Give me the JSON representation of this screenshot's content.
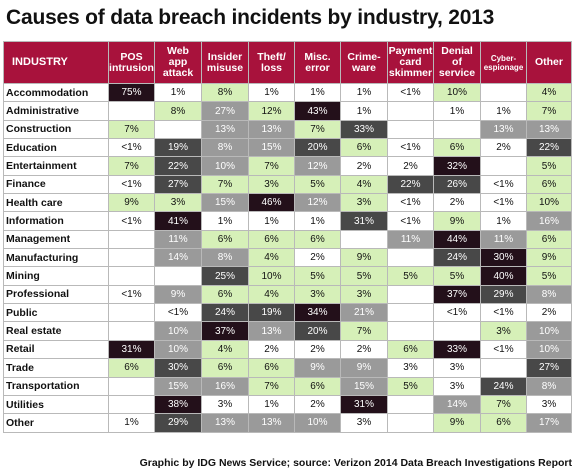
{
  "title": "Causes of data breach incidents by industry, 2013",
  "source": "Graphic by IDG News Service; source: Verizon 2014 Data Breach Investigations Report",
  "colors": {
    "header": "#a8123c",
    "level_0": "#ffffff",
    "level_1": "#d6f0b8",
    "level_2": "#9a9a9a",
    "level_3": "#484848",
    "level_4": "#23101a"
  },
  "chart_data": {
    "type": "table",
    "corner_label": "INDUSTRY",
    "columns": [
      {
        "lines": [
          "POS",
          "intrusion"
        ],
        "small": false
      },
      {
        "lines": [
          "Web",
          "app",
          "attack"
        ],
        "small": false
      },
      {
        "lines": [
          "Insider",
          "misuse"
        ],
        "small": false
      },
      {
        "lines": [
          "Theft/",
          "loss"
        ],
        "small": false
      },
      {
        "lines": [
          "Misc.",
          "error"
        ],
        "small": false
      },
      {
        "lines": [
          "Crime-",
          "ware"
        ],
        "small": false
      },
      {
        "lines": [
          "Payment",
          "card",
          "skimmer"
        ],
        "small": false
      },
      {
        "lines": [
          "Denial",
          "of",
          "service"
        ],
        "small": false
      },
      {
        "lines": [
          "Cyber-",
          "espionage"
        ],
        "small": true
      },
      {
        "lines": [
          "Other"
        ],
        "small": false
      }
    ],
    "rows": [
      {
        "industry": "Accommodation",
        "values": [
          "75%",
          "1%",
          "8%",
          "1%",
          "1%",
          "1%",
          "<1%",
          "10%",
          "",
          "4%"
        ],
        "shades": [
          4,
          0,
          1,
          0,
          0,
          0,
          0,
          1,
          0,
          1
        ]
      },
      {
        "industry": "Administrative",
        "values": [
          "",
          "8%",
          "27%",
          "12%",
          "43%",
          "1%",
          "",
          "1%",
          "1%",
          "7%"
        ],
        "shades": [
          0,
          1,
          2,
          1,
          4,
          0,
          0,
          0,
          0,
          1
        ]
      },
      {
        "industry": "Construction",
        "values": [
          "7%",
          "",
          "13%",
          "13%",
          "7%",
          "33%",
          "",
          "",
          "13%",
          "13%"
        ],
        "shades": [
          1,
          0,
          2,
          2,
          1,
          3,
          0,
          0,
          2,
          2
        ]
      },
      {
        "industry": "Education",
        "values": [
          "<1%",
          "19%",
          "8%",
          "15%",
          "20%",
          "6%",
          "<1%",
          "6%",
          "2%",
          "22%"
        ],
        "shades": [
          0,
          3,
          2,
          2,
          3,
          1,
          0,
          1,
          0,
          3
        ]
      },
      {
        "industry": "Entertainment",
        "values": [
          "7%",
          "22%",
          "10%",
          "7%",
          "12%",
          "2%",
          "2%",
          "32%",
          "",
          "5%"
        ],
        "shades": [
          1,
          3,
          2,
          1,
          2,
          0,
          0,
          4,
          0,
          1
        ]
      },
      {
        "industry": "Finance",
        "values": [
          "<1%",
          "27%",
          "7%",
          "3%",
          "5%",
          "4%",
          "22%",
          "26%",
          "<1%",
          "6%"
        ],
        "shades": [
          0,
          3,
          1,
          1,
          1,
          1,
          3,
          3,
          0,
          1
        ]
      },
      {
        "industry": "Health care",
        "values": [
          "9%",
          "3%",
          "15%",
          "46%",
          "12%",
          "3%",
          "<1%",
          "2%",
          "<1%",
          "10%"
        ],
        "shades": [
          1,
          1,
          2,
          4,
          2,
          1,
          0,
          0,
          0,
          1
        ]
      },
      {
        "industry": "Information",
        "values": [
          "<1%",
          "41%",
          "1%",
          "1%",
          "1%",
          "31%",
          "<1%",
          "9%",
          "1%",
          "16%"
        ],
        "shades": [
          0,
          4,
          0,
          0,
          0,
          3,
          0,
          1,
          0,
          2
        ]
      },
      {
        "industry": "Management",
        "values": [
          "",
          "11%",
          "6%",
          "6%",
          "6%",
          "",
          "11%",
          "44%",
          "11%",
          "6%"
        ],
        "shades": [
          0,
          2,
          1,
          1,
          1,
          0,
          2,
          4,
          2,
          1
        ]
      },
      {
        "industry": "Manufacturing",
        "values": [
          "",
          "14%",
          "8%",
          "4%",
          "2%",
          "9%",
          "",
          "24%",
          "30%",
          "9%"
        ],
        "shades": [
          0,
          2,
          2,
          1,
          0,
          1,
          0,
          3,
          4,
          1
        ]
      },
      {
        "industry": "Mining",
        "values": [
          "",
          "",
          "25%",
          "10%",
          "5%",
          "5%",
          "5%",
          "5%",
          "40%",
          "5%"
        ],
        "shades": [
          0,
          0,
          3,
          1,
          1,
          1,
          1,
          1,
          4,
          1
        ]
      },
      {
        "industry": "Professional",
        "values": [
          "<1%",
          "9%",
          "6%",
          "4%",
          "3%",
          "3%",
          "",
          "37%",
          "29%",
          "8%"
        ],
        "shades": [
          0,
          2,
          1,
          1,
          1,
          1,
          0,
          4,
          3,
          2
        ]
      },
      {
        "industry": "Public",
        "values": [
          "",
          "<1%",
          "24%",
          "19%",
          "34%",
          "21%",
          "",
          "<1%",
          "<1%",
          "2%"
        ],
        "shades": [
          0,
          0,
          3,
          3,
          4,
          2,
          0,
          0,
          0,
          0
        ]
      },
      {
        "industry": "Real estate",
        "values": [
          "",
          "10%",
          "37%",
          "13%",
          "20%",
          "7%",
          "",
          "",
          "3%",
          "10%"
        ],
        "shades": [
          0,
          2,
          4,
          2,
          3,
          1,
          0,
          0,
          1,
          2
        ]
      },
      {
        "industry": "Retail",
        "values": [
          "31%",
          "10%",
          "4%",
          "2%",
          "2%",
          "2%",
          "6%",
          "33%",
          "<1%",
          "10%"
        ],
        "shades": [
          4,
          2,
          1,
          0,
          0,
          0,
          1,
          4,
          0,
          2
        ]
      },
      {
        "industry": "Trade",
        "values": [
          "6%",
          "30%",
          "6%",
          "6%",
          "9%",
          "9%",
          "3%",
          "3%",
          "",
          "27%"
        ],
        "shades": [
          1,
          3,
          1,
          1,
          2,
          2,
          0,
          0,
          0,
          3
        ]
      },
      {
        "industry": "Transportation",
        "values": [
          "",
          "15%",
          "16%",
          "7%",
          "6%",
          "15%",
          "5%",
          "3%",
          "24%",
          "8%"
        ],
        "shades": [
          0,
          2,
          2,
          1,
          1,
          2,
          1,
          0,
          3,
          2
        ]
      },
      {
        "industry": "Utilities",
        "values": [
          "",
          "38%",
          "3%",
          "1%",
          "2%",
          "31%",
          "",
          "14%",
          "7%",
          "3%"
        ],
        "shades": [
          0,
          4,
          0,
          0,
          0,
          4,
          0,
          2,
          1,
          0
        ]
      },
      {
        "industry": "Other",
        "values": [
          "1%",
          "29%",
          "13%",
          "13%",
          "10%",
          "3%",
          "",
          "9%",
          "6%",
          "17%"
        ],
        "shades": [
          0,
          3,
          2,
          2,
          2,
          0,
          0,
          1,
          1,
          2
        ]
      }
    ]
  }
}
